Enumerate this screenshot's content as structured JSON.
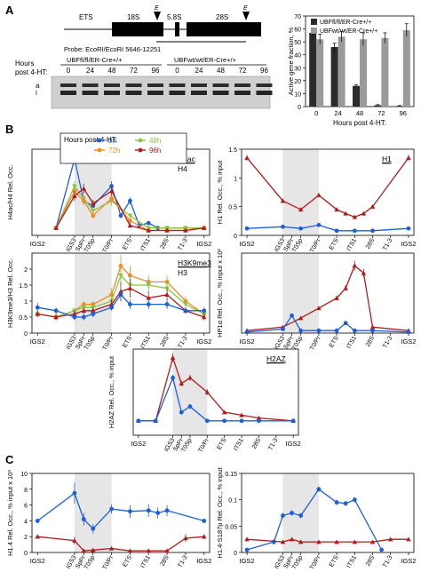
{
  "figure": {
    "panel_labels": [
      "A",
      "B",
      "C"
    ],
    "gene_map": {
      "segments": [
        "ETS",
        "18S",
        "5.8S",
        "28S"
      ],
      "site_marker": "E",
      "probe_text": "Probe: EcoRI/EcoRI 5646-12251"
    },
    "blot": {
      "group1_label": "UBFfl/fl/ER-Cre+/+",
      "group2_label": "UBFwt/wt/ER-Cre+/+",
      "rows_label_line1": "Hours",
      "rows_label_line2": "post 4-HT:",
      "hours": [
        "0",
        "24",
        "48",
        "72",
        "96",
        "0",
        "24",
        "48",
        "72",
        "96"
      ],
      "band_labels": [
        "a",
        "i"
      ]
    },
    "legend_b": {
      "title": "Hours post 4-HT:",
      "entries": [
        {
          "label": "0h",
          "color": "#1f5fd6"
        },
        {
          "label": "48h",
          "color": "#8cc63e"
        },
        {
          "label": "72h",
          "color": "#f08a24"
        },
        {
          "label": "96h",
          "color": "#b01c1c"
        }
      ]
    },
    "position_ticks": [
      "IGS2",
      "IGS3",
      "SpPr",
      "T0Sp",
      "T0/Pr",
      "ETS",
      "ITS1",
      "28S",
      "T1-3",
      "IGS2"
    ]
  },
  "chart_data": [
    {
      "id": "active_fraction",
      "type": "bar",
      "ylabel": "Active gene fraction, %",
      "xlabel": "Hours post 4-HT:",
      "categories": [
        "0",
        "24",
        "48",
        "72",
        "96"
      ],
      "ylim": [
        0,
        70
      ],
      "yticks": [
        "0",
        "10",
        "20",
        "30",
        "40",
        "50",
        "60",
        "70"
      ],
      "series": [
        {
          "name": "UBFfl/fl/ER-Cre+/+",
          "color": "#2b2b2b",
          "values": [
            57,
            46,
            16,
            1,
            0.5
          ],
          "errors": [
            3,
            3,
            1,
            0.5,
            0.3
          ]
        },
        {
          "name": "UBFwt/wt/ER-Cre+/+",
          "color": "#9a9a9a",
          "values": [
            52,
            54,
            52,
            53,
            59
          ],
          "errors": [
            4,
            4,
            5,
            4,
            5
          ]
        }
      ]
    },
    {
      "id": "h4ac",
      "type": "line",
      "inset": "H4ac",
      "inset2": "H4",
      "ylabel": "H4ac/H4 Rel. Occ.",
      "yticks": [],
      "ylim": [
        0,
        35
      ],
      "shade": [
        3,
        5
      ],
      "series": [
        {
          "name": "0h",
          "color": "#1f5fd6",
          "marker": "circle",
          "x": [
            2,
            3,
            3.5,
            4,
            5,
            5.5,
            6,
            6.5,
            7,
            7.5,
            8,
            9,
            10
          ],
          "y": [
            3,
            31,
            14,
            12,
            20,
            8,
            14,
            4,
            5,
            3,
            3,
            3,
            3
          ],
          "err": [
            0,
            2,
            1.5,
            1.5,
            2,
            1,
            1.5,
            0.5,
            0.5,
            0.5,
            0.5,
            0.5,
            0
          ]
        },
        {
          "name": "48h",
          "color": "#8cc63e",
          "marker": "triangle-down",
          "x": [
            2,
            3,
            3.5,
            4,
            5,
            6,
            7,
            8,
            9,
            10
          ],
          "y": [
            3,
            20,
            15,
            10,
            14,
            8,
            3,
            3,
            3,
            3
          ],
          "err": [
            0,
            2,
            1.5,
            1.5,
            2,
            1,
            0.5,
            0.5,
            0.5,
            0
          ]
        },
        {
          "name": "72h",
          "color": "#f08a24",
          "marker": "circle",
          "x": [
            2,
            3,
            3.5,
            4,
            5,
            6,
            7,
            8,
            9,
            10
          ],
          "y": [
            3,
            18,
            14,
            8,
            15,
            6,
            2,
            2,
            2,
            3
          ],
          "err": [
            0,
            2,
            1.5,
            1,
            2,
            1,
            0.5,
            0.5,
            0.5,
            0
          ]
        },
        {
          "name": "96h",
          "color": "#b01c1c",
          "marker": "triangle-up",
          "x": [
            2,
            3,
            3.5,
            4,
            5,
            6,
            7,
            8,
            9,
            10
          ],
          "y": [
            3,
            16,
            19,
            13,
            18,
            4,
            2,
            2,
            2,
            3
          ],
          "err": [
            0,
            2,
            2,
            1.5,
            2,
            1,
            0.5,
            0.5,
            0.5,
            0
          ]
        }
      ]
    },
    {
      "id": "h1",
      "type": "line",
      "inset": "H1",
      "ylabel": "H1 Rel. Occ., % input",
      "ylim": [
        0,
        1.5
      ],
      "yticks": [
        "0",
        "0.5",
        "1",
        "1.5"
      ],
      "shade": [
        3,
        5
      ],
      "series": [
        {
          "name": "96h",
          "color": "#b01c1c",
          "marker": "triangle-up",
          "x": [
            1,
            3,
            4,
            5,
            6,
            6.5,
            7,
            7.5,
            8,
            10
          ],
          "y": [
            1.35,
            0.6,
            0.45,
            0.7,
            0.45,
            0.38,
            0.32,
            0.38,
            0.5,
            1.35
          ],
          "err": [
            0.05,
            0.03,
            0.03,
            0.03,
            0.02,
            0.02,
            0.02,
            0.02,
            0.03,
            0.05
          ]
        },
        {
          "name": "0h",
          "color": "#1f5fd6",
          "marker": "circle",
          "x": [
            1,
            3,
            4,
            5,
            6,
            7,
            8,
            10
          ],
          "y": [
            0.12,
            0.15,
            0.12,
            0.18,
            0.08,
            0.08,
            0.08,
            0.12
          ],
          "err": [
            0.01,
            0.01,
            0.01,
            0.01,
            0.01,
            0.01,
            0.01,
            0.01
          ]
        }
      ]
    },
    {
      "id": "h3k9me3",
      "type": "line",
      "inset": "H3K9me3",
      "inset2": "H3",
      "ylabel": "H3K9me3/H3 Rel. Occ.",
      "ylim": [
        0,
        2.5
      ],
      "yticks": [
        "0",
        "0.5",
        "1",
        "1.5",
        "2"
      ],
      "shade": [
        3,
        5
      ],
      "series": [
        {
          "name": "72h",
          "color": "#f08a24",
          "marker": "circle",
          "x": [
            1,
            2,
            3,
            3.5,
            4,
            5,
            5.5,
            6,
            7,
            8,
            9,
            10
          ],
          "y": [
            0.6,
            0.5,
            0.7,
            0.9,
            0.9,
            1.2,
            2.1,
            1.8,
            1.6,
            1.6,
            1.0,
            0.6
          ],
          "err": [
            0.1,
            0.1,
            0.1,
            0.1,
            0.1,
            0.2,
            0.35,
            0.3,
            0.2,
            0.2,
            0.15,
            0.1
          ]
        },
        {
          "name": "48h",
          "color": "#8cc63e",
          "marker": "triangle-down",
          "x": [
            1,
            2,
            3,
            3.5,
            4,
            5,
            5.5,
            6,
            7,
            8,
            9,
            10
          ],
          "y": [
            0.6,
            0.5,
            0.7,
            0.8,
            0.8,
            1.0,
            1.8,
            1.5,
            1.5,
            1.4,
            0.9,
            0.6
          ],
          "err": [
            0.1,
            0.1,
            0.1,
            0.1,
            0.1,
            0.2,
            0.3,
            0.3,
            0.2,
            0.2,
            0.15,
            0.1
          ]
        },
        {
          "name": "96h",
          "color": "#b01c1c",
          "marker": "triangle-up",
          "x": [
            1,
            2,
            3,
            3.5,
            4,
            5,
            5.5,
            6,
            7,
            8,
            9,
            10
          ],
          "y": [
            0.6,
            0.5,
            0.6,
            0.7,
            0.7,
            0.9,
            1.3,
            1.4,
            1.1,
            1.2,
            0.7,
            0.5
          ],
          "err": [
            0.1,
            0.1,
            0.1,
            0.1,
            0.1,
            0.15,
            0.3,
            0.3,
            0.2,
            0.2,
            0.1,
            0.1
          ]
        },
        {
          "name": "0h",
          "color": "#1f5fd6",
          "marker": "circle",
          "x": [
            1,
            2,
            3,
            3.5,
            4,
            5,
            5.5,
            6,
            7,
            8,
            9,
            10
          ],
          "y": [
            0.8,
            0.7,
            0.5,
            0.5,
            0.6,
            0.8,
            1.2,
            0.9,
            0.9,
            0.9,
            0.7,
            0.7
          ],
          "err": [
            0.15,
            0.1,
            0.1,
            0.1,
            0.1,
            0.1,
            0.2,
            0.15,
            0.15,
            0.15,
            0.1,
            0.1
          ]
        }
      ]
    },
    {
      "id": "hp1a",
      "type": "line",
      "inset": "",
      "ylabel": "HP1α Rel. Occ., % input x 10²",
      "ylim": [
        0,
        1.6
      ],
      "yticks": [],
      "shade": [
        3,
        5
      ],
      "series": [
        {
          "name": "96h",
          "color": "#b01c1c",
          "marker": "triangle-up",
          "x": [
            1,
            3,
            4,
            5,
            6,
            6.5,
            7,
            7.5,
            8,
            10
          ],
          "y": [
            0.05,
            0.12,
            0.3,
            0.5,
            0.7,
            0.9,
            1.35,
            1.2,
            0.12,
            0.05
          ],
          "err": [
            0.01,
            0.02,
            0.03,
            0.03,
            0.05,
            0.06,
            0.1,
            0.08,
            0.02,
            0.01
          ]
        },
        {
          "name": "0h",
          "color": "#1f5fd6",
          "marker": "circle",
          "x": [
            1,
            3,
            3.5,
            4,
            5,
            6,
            6.5,
            7,
            8,
            10
          ],
          "y": [
            0.02,
            0.08,
            0.35,
            0.05,
            0.05,
            0.05,
            0.2,
            0.05,
            0.05,
            0.02
          ],
          "err": [
            0.01,
            0.01,
            0.03,
            0.01,
            0.01,
            0.01,
            0.02,
            0.01,
            0.01,
            0.01
          ]
        }
      ]
    },
    {
      "id": "h2az",
      "type": "line",
      "inset": "H2AZ",
      "ylabel": "H2AZ Rel. Occ., % input",
      "ylim": [
        0,
        0.3
      ],
      "yticks": [],
      "shade": [
        3,
        5
      ],
      "series": [
        {
          "name": "96h",
          "color": "#b01c1c",
          "marker": "triangle-up",
          "x": [
            1,
            2,
            3,
            3.5,
            4,
            5,
            6,
            7,
            8,
            10
          ],
          "y": [
            0.05,
            0.05,
            0.27,
            0.18,
            0.2,
            0.15,
            0.08,
            0.07,
            0.06,
            0.05
          ],
          "err": [
            0.005,
            0.005,
            0.015,
            0.01,
            0.01,
            0.01,
            0.005,
            0.005,
            0.005,
            0.005
          ]
        },
        {
          "name": "0h",
          "color": "#1f5fd6",
          "marker": "circle",
          "x": [
            1,
            2,
            3,
            3.5,
            4,
            5,
            6,
            7,
            8,
            10
          ],
          "y": [
            0.05,
            0.05,
            0.2,
            0.08,
            0.1,
            0.05,
            0.05,
            0.05,
            0.05,
            0.05
          ],
          "err": [
            0.005,
            0.005,
            0.01,
            0.008,
            0.008,
            0.005,
            0.005,
            0.005,
            0.005,
            0.005
          ]
        }
      ]
    },
    {
      "id": "h14",
      "type": "line",
      "inset": "",
      "ylabel": "H1.4 Rel. Occ., % input x 10³",
      "ylim": [
        0,
        10
      ],
      "yticks": [
        "0",
        "2",
        "4",
        "6",
        "8",
        "10"
      ],
      "shade": [
        3,
        5
      ],
      "series": [
        {
          "name": "0h",
          "color": "#1f5fd6",
          "marker": "circle",
          "x": [
            1,
            3,
            3.5,
            4,
            5,
            6,
            7,
            7.5,
            8,
            10
          ],
          "y": [
            4,
            7.5,
            4.2,
            3,
            5.5,
            5.2,
            5.3,
            5,
            5.3,
            4
          ],
          "err": [
            0.3,
            1.3,
            0.8,
            0.6,
            0.6,
            0.8,
            0.8,
            0.7,
            0.7,
            0.3
          ]
        },
        {
          "name": "96h",
          "color": "#b01c1c",
          "marker": "triangle-up",
          "x": [
            1,
            3,
            3.5,
            4,
            5,
            6,
            7,
            8,
            9,
            10
          ],
          "y": [
            2,
            1.5,
            0.2,
            0.3,
            0.5,
            0.2,
            0.2,
            0.2,
            1.8,
            2
          ],
          "err": [
            0.2,
            0.5,
            0.2,
            0.2,
            0.2,
            0.2,
            0.2,
            0.2,
            0.5,
            0.3
          ]
        }
      ]
    },
    {
      "id": "h14s187p",
      "type": "line",
      "inset": "",
      "ylabel": "H1.4-S187p Rel. Occ., % input",
      "ylim": [
        0,
        0.15
      ],
      "yticks": [
        "0",
        "0.05",
        "0.1",
        "0.15"
      ],
      "shade": [
        3,
        5
      ],
      "series": [
        {
          "name": "0h",
          "color": "#1f5fd6",
          "marker": "circle",
          "x": [
            1,
            2.5,
            3,
            3.5,
            4,
            5,
            6,
            6.5,
            7,
            8.5
          ],
          "y": [
            0.005,
            0.02,
            0.07,
            0.075,
            0.07,
            0.12,
            0.095,
            0.093,
            0.1,
            0.005
          ],
          "err": [
            0.002,
            0.005,
            0.005,
            0.005,
            0.005,
            0.005,
            0.005,
            0.005,
            0.005,
            0.002
          ]
        },
        {
          "name": "96h",
          "color": "#b01c1c",
          "marker": "triangle-up",
          "x": [
            1,
            3,
            3.5,
            4,
            5,
            6,
            7,
            8,
            9,
            10
          ],
          "y": [
            0.025,
            0.02,
            0.025,
            0.02,
            0.02,
            0.02,
            0.02,
            0.02,
            0.025,
            0.025
          ],
          "err": [
            0.002,
            0.002,
            0.002,
            0.002,
            0.002,
            0.002,
            0.002,
            0.002,
            0.002,
            0.002
          ]
        }
      ]
    }
  ]
}
